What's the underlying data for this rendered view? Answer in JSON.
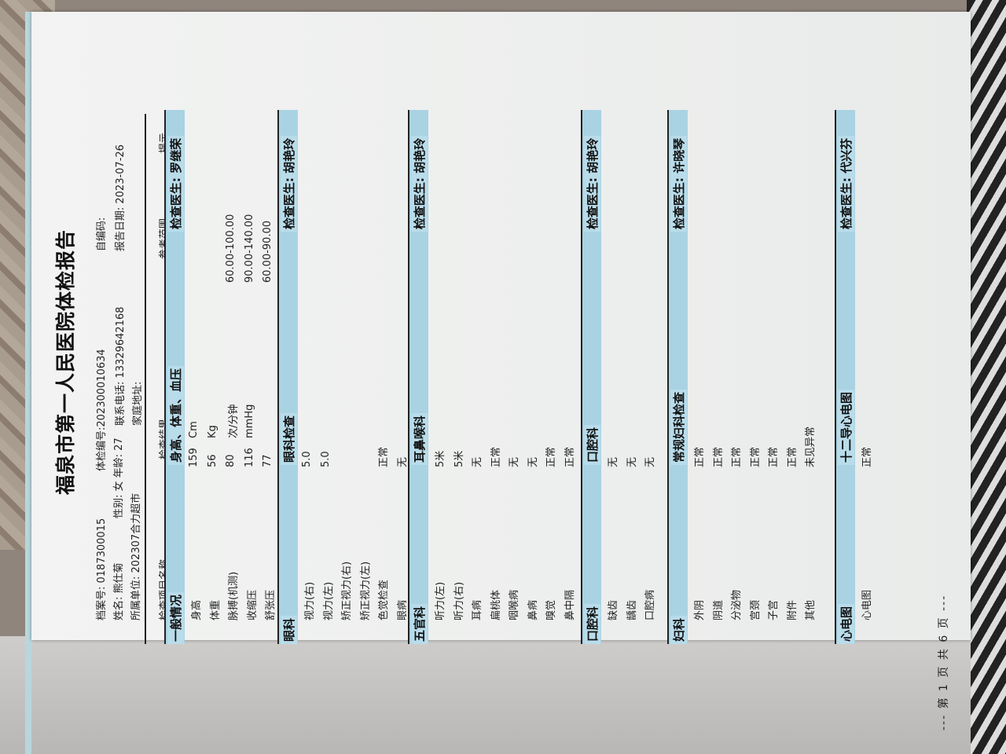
{
  "report": {
    "title": "福泉市第一人民医院体检报告",
    "archive_no": "档案号: 0187300015",
    "exam_no": "体检编号:202300010634",
    "self_code": "自编码:",
    "name": "姓名: 熊仕菊",
    "gender_age": "性别: 女  年龄: 27",
    "phone": "联系电话: 13329642168",
    "report_date": "报告日期: 2023-07-26",
    "unit": "所属单位: 202307合力超市",
    "address": "家庭地址:"
  },
  "columns": {
    "name": "检查项目名称",
    "result": "检查结果",
    "reference": "参考范围",
    "hint": "提示"
  },
  "colors": {
    "section_bar": "#a9d3e3"
  },
  "sections": [
    {
      "category": "一般情况",
      "name": "身高、体重、血压",
      "doctor": "检查医生: 罗继荣",
      "rows": [
        {
          "item": "身高",
          "result": "159",
          "unit": "Cm",
          "ref": ""
        },
        {
          "item": "体重",
          "result": "56",
          "unit": "Kg",
          "ref": ""
        },
        {
          "item": "脉搏(机测)",
          "result": "80",
          "unit": "次/分钟",
          "ref": "60.00-100.00"
        },
        {
          "item": "收缩压",
          "result": "116",
          "unit": "mmHg",
          "ref": "90.00-140.00"
        },
        {
          "item": "舒张压",
          "result": "77",
          "unit": "",
          "ref": "60.00-90.00"
        }
      ]
    },
    {
      "category": "眼科",
      "name": "眼科检查",
      "doctor": "检查医生: 胡艳玲",
      "rows": [
        {
          "item": "视力(右)",
          "result": "5.0",
          "unit": "",
          "ref": ""
        },
        {
          "item": "视力(左)",
          "result": "5.0",
          "unit": "",
          "ref": ""
        },
        {
          "item": "矫正视力(右)",
          "result": "",
          "unit": "",
          "ref": ""
        },
        {
          "item": "矫正视力(左)",
          "result": "",
          "unit": "",
          "ref": ""
        },
        {
          "item": "色觉检查",
          "result": "正常",
          "unit": "",
          "ref": ""
        },
        {
          "item": "眼病",
          "result": "无",
          "unit": "",
          "ref": ""
        }
      ]
    },
    {
      "category": "五官科",
      "name": "耳鼻喉科",
      "doctor": "检查医生: 胡艳玲",
      "rows": [
        {
          "item": "听力(左)",
          "result": "5米",
          "unit": "",
          "ref": ""
        },
        {
          "item": "听力(右)",
          "result": "5米",
          "unit": "",
          "ref": ""
        },
        {
          "item": "耳病",
          "result": "无",
          "unit": "",
          "ref": ""
        },
        {
          "item": "扁桃体",
          "result": "正常",
          "unit": "",
          "ref": ""
        },
        {
          "item": "咽喉病",
          "result": "无",
          "unit": "",
          "ref": ""
        },
        {
          "item": "鼻病",
          "result": "无",
          "unit": "",
          "ref": ""
        },
        {
          "item": "嗅觉",
          "result": "正常",
          "unit": "",
          "ref": ""
        },
        {
          "item": "鼻中隔",
          "result": "正常",
          "unit": "",
          "ref": ""
        }
      ]
    },
    {
      "category": "口腔科",
      "name": "口腔科",
      "doctor": "检查医生: 胡艳玲",
      "rows": [
        {
          "item": "缺齿",
          "result": "无",
          "unit": "",
          "ref": ""
        },
        {
          "item": "龋齿",
          "result": "无",
          "unit": "",
          "ref": ""
        },
        {
          "item": "口腔病",
          "result": "无",
          "unit": "",
          "ref": ""
        }
      ]
    },
    {
      "category": "妇科",
      "name": "常规妇科检查",
      "doctor": "检查医生: 许晓琴",
      "rows": [
        {
          "item": "外阴",
          "result": "正常",
          "unit": "",
          "ref": ""
        },
        {
          "item": "阴道",
          "result": "正常",
          "unit": "",
          "ref": ""
        },
        {
          "item": "分泌物",
          "result": "正常",
          "unit": "",
          "ref": ""
        },
        {
          "item": "宫颈",
          "result": "正常",
          "unit": "",
          "ref": ""
        },
        {
          "item": "子宫",
          "result": "正常",
          "unit": "",
          "ref": ""
        },
        {
          "item": "附件",
          "result": "正常",
          "unit": "",
          "ref": ""
        },
        {
          "item": "其他",
          "result": "未见异常",
          "unit": "",
          "ref": ""
        }
      ]
    },
    {
      "category": "心电图",
      "name": "十二导心电图",
      "doctor": "检查医生: 代兴芬",
      "rows": [
        {
          "item": "心电图",
          "result": "正常",
          "unit": "",
          "ref": ""
        }
      ]
    }
  ],
  "footer": "--- 第 1 页   共 6 页 ---"
}
